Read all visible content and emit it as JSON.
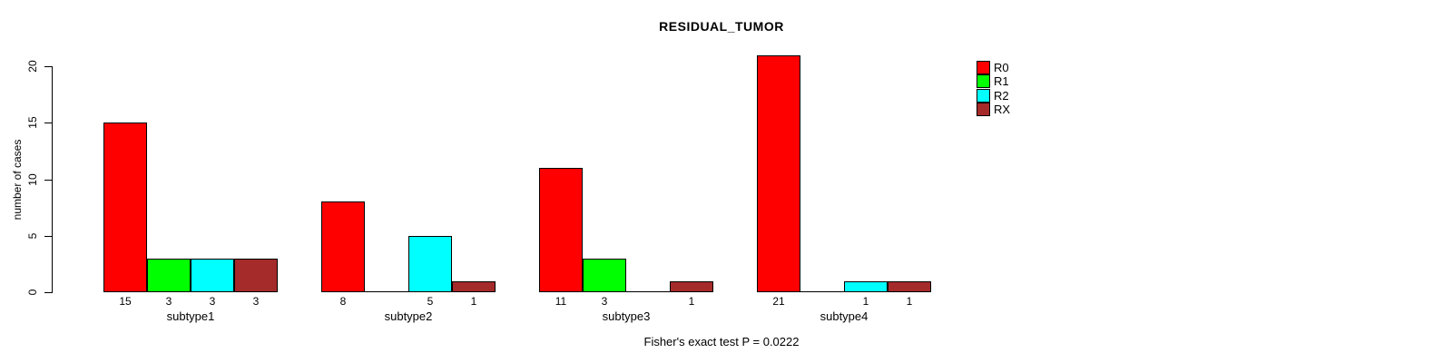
{
  "chart_data": {
    "type": "bar",
    "title": "RESIDUAL_TUMOR",
    "ylabel": "number of cases",
    "xlabel": "",
    "ylim": [
      0,
      20
    ],
    "yticks": [
      0,
      5,
      10,
      15,
      20
    ],
    "categories": [
      "subtype1",
      "subtype2",
      "subtype3",
      "subtype4"
    ],
    "series": [
      {
        "name": "R0",
        "color": "#FF0000",
        "values": [
          15,
          8,
          11,
          21
        ]
      },
      {
        "name": "R1",
        "color": "#00FF00",
        "values": [
          3,
          0,
          3,
          0
        ]
      },
      {
        "name": "R2",
        "color": "#00FFFF",
        "values": [
          3,
          5,
          0,
          1
        ]
      },
      {
        "name": "RX",
        "color": "#A52A2A",
        "values": [
          3,
          1,
          1,
          1
        ]
      }
    ],
    "bar_value_labels_shown": true,
    "zero_value_labels_hidden": true,
    "legend_position": "top-right",
    "grid": false,
    "annotation": "Fisher's exact test P = 0.0222",
    "axis_color": "#000000",
    "background_color": "#FFFFFF"
  }
}
